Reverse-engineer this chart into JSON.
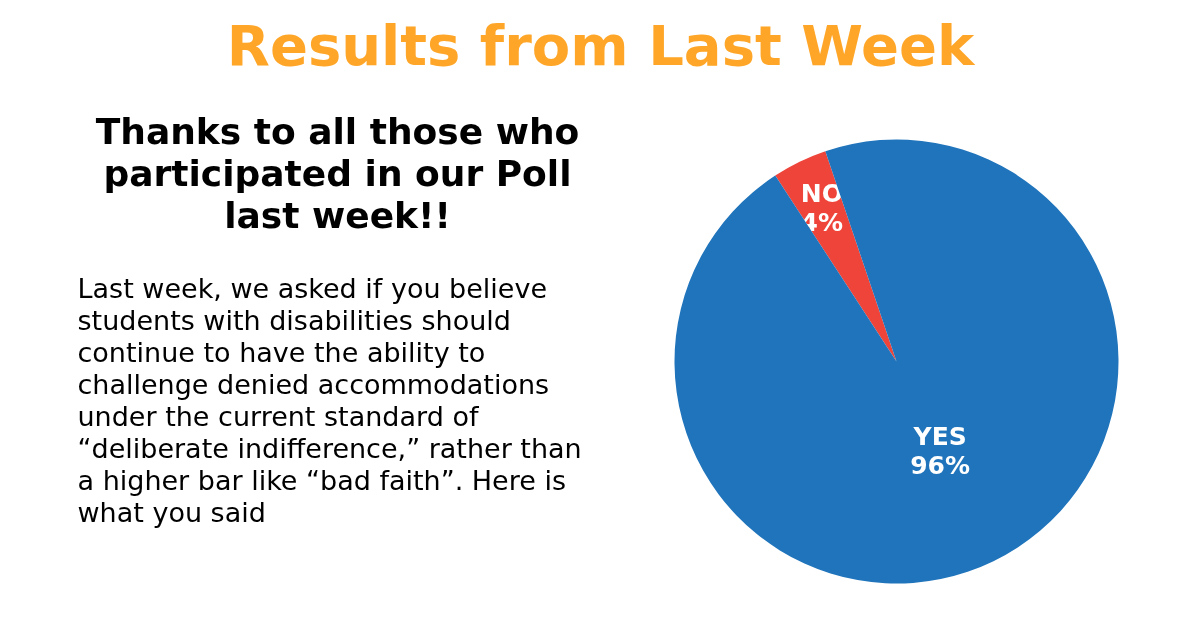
{
  "chart_data": {
    "type": "pie",
    "title": "Results from Last Week",
    "subtitle": "Thanks to all those who participated in our Poll last week!!",
    "annotations": [
      "Last week, we asked if you believe students with disabilities should continue to have the ability to challenge denied accommodations under the current standard of “deliberate indifference,” rather than a higher bar like “bad faith”. Here is what you said"
    ],
    "categories": [
      "NO",
      "YES"
    ],
    "values": [
      4,
      96
    ],
    "colors": [
      "#ef443a",
      "#1f74bb"
    ],
    "value_labels": [
      "4%",
      "96%"
    ]
  }
}
